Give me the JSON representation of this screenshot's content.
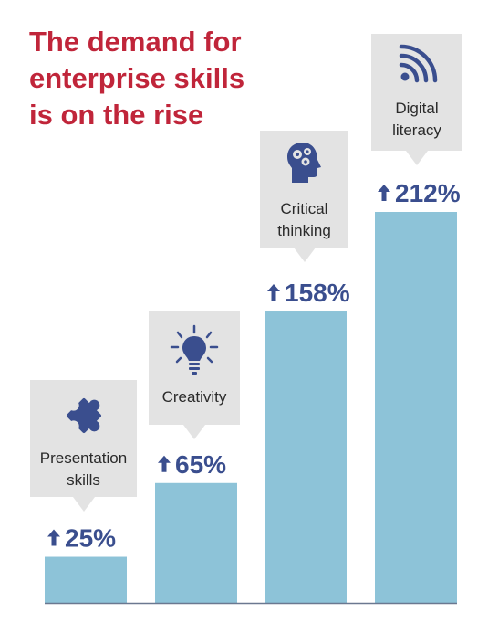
{
  "title_lines": [
    "The demand for",
    "enterprise skills",
    "is on the rise"
  ],
  "colors": {
    "title": "#c0253a",
    "bar": "#8dc3d8",
    "value_text": "#3a4e8e",
    "callout_bg": "#e3e3e3",
    "icon": "#3a4e8e"
  },
  "callouts": [
    {
      "icon": "puzzle-icon",
      "label_lines": [
        "Presentation",
        "skills"
      ]
    },
    {
      "icon": "lightbulb-icon",
      "label_lines": [
        "Creativity"
      ]
    },
    {
      "icon": "head-gears-icon",
      "label_lines": [
        "Critical",
        "thinking"
      ]
    },
    {
      "icon": "wifi-signal-icon",
      "label_lines": [
        "Digital",
        "literacy"
      ]
    }
  ],
  "chart_data": {
    "type": "bar",
    "categories": [
      "Presentation skills",
      "Creativity",
      "Critical thinking",
      "Digital literacy"
    ],
    "values": [
      25,
      65,
      158,
      212
    ],
    "value_labels": [
      "25%",
      "65%",
      "158%",
      "212%"
    ],
    "value_prefix_icon": "up-arrow-icon",
    "title": "The demand for enterprise skills is on the rise",
    "xlabel": "",
    "ylabel": "",
    "ylim": [
      0,
      212
    ],
    "grid": false,
    "legend": "none"
  }
}
